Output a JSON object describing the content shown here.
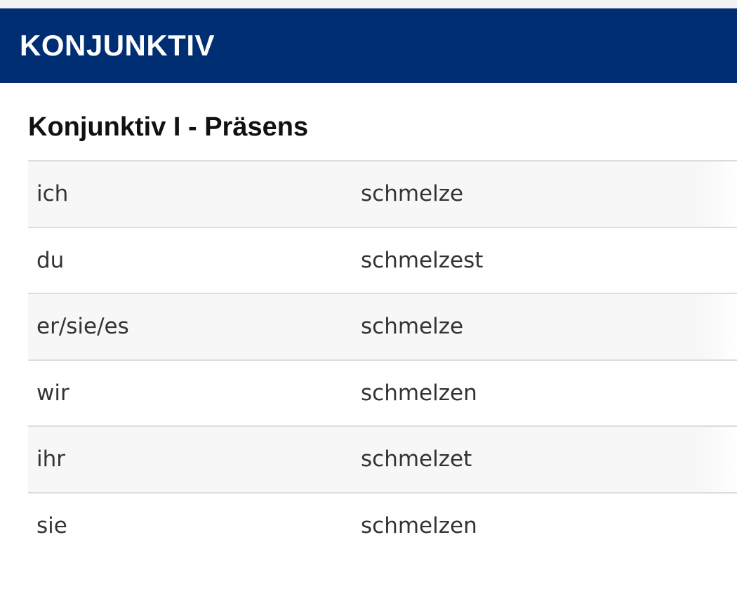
{
  "header": {
    "title": "KONJUNKTIV"
  },
  "section": {
    "title": "Konjunktiv I - Präsens"
  },
  "conjugation": [
    {
      "pronoun": "ich",
      "form": "schmelze"
    },
    {
      "pronoun": "du",
      "form": "schmelzest"
    },
    {
      "pronoun": "er/sie/es",
      "form": "schmelze"
    },
    {
      "pronoun": "wir",
      "form": "schmelzen"
    },
    {
      "pronoun": "ihr",
      "form": "schmelzet"
    },
    {
      "pronoun": "sie",
      "form": "schmelzen"
    }
  ],
  "colors": {
    "header_bg": "#002e73",
    "row_shade": "#f7f7f7",
    "divider": "#dcdcdc"
  }
}
